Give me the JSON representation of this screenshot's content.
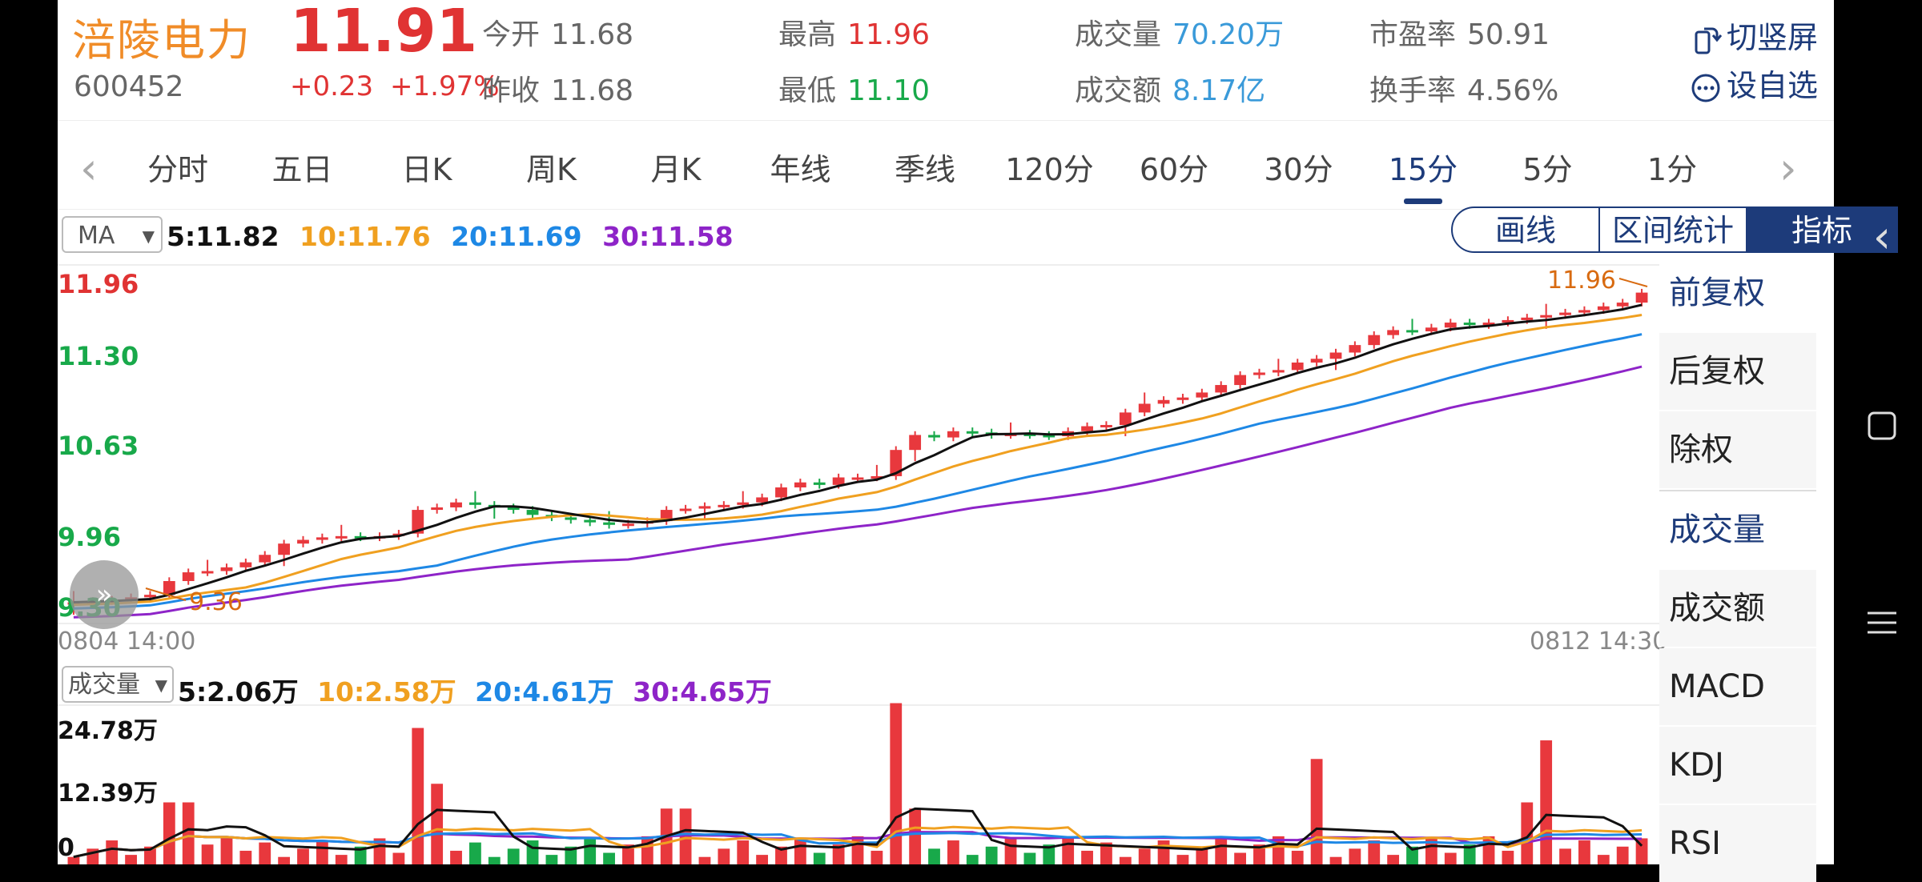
{
  "stock": {
    "name": "涪陵电力",
    "code": "600452",
    "price": "11.91",
    "change": "+0.23",
    "change_pct": "+1.97%"
  },
  "quote": {
    "open_label": "今开",
    "open": "11.68",
    "prev_close_label": "昨收",
    "prev_close": "11.68",
    "high_label": "最高",
    "high": "11.96",
    "low_label": "最低",
    "low": "11.10",
    "volume_label": "成交量",
    "volume": "70.20万",
    "amount_label": "成交额",
    "amount": "8.17亿",
    "pe_label": "市盈率",
    "pe": "50.91",
    "turnover_label": "换手率",
    "turnover": "4.56%"
  },
  "header_buttons": {
    "rotate": "切竖屏",
    "watchlist": "设自选"
  },
  "tabs": [
    "分时",
    "五日",
    "日K",
    "周K",
    "月K",
    "年线",
    "季线",
    "120分",
    "60分",
    "30分",
    "15分",
    "5分",
    "1分"
  ],
  "active_tab": "15分",
  "indicator_select": "MA",
  "ma_values": {
    "ma5": "5:11.82",
    "ma10": "10:11.76",
    "ma20": "20:11.69",
    "ma30": "30:11.58"
  },
  "tools": {
    "draw": "画线",
    "range": "区间统计",
    "indicator": "指标"
  },
  "price_axis": [
    "11.96",
    "11.30",
    "10.63",
    "9.96",
    "9.30"
  ],
  "annotations": {
    "high": "11.96",
    "low": "9.36"
  },
  "dates": {
    "start": "0804 14:00",
    "end": "0812 14:30"
  },
  "volume_select": "成交量",
  "vol_values": {
    "ma5": "5:2.06万",
    "ma10": "10:2.58万",
    "ma20": "20:4.61万",
    "ma30": "30:4.65万"
  },
  "volume_axis": [
    "24.78万",
    "12.39万",
    "0"
  ],
  "side_menu": [
    "前复权",
    "后复权",
    "除权",
    "成交量",
    "成交额",
    "MACD",
    "KDJ",
    "RSI"
  ],
  "colors": {
    "up": "#e8383d",
    "down": "#18a94a",
    "ma5": "#111111",
    "ma10": "#f0a020",
    "ma20": "#1e88e5",
    "ma30": "#8e24c8",
    "accent": "#1d3b7a"
  },
  "chart_data": {
    "type": "candlestick",
    "y_range": [
      9.3,
      11.96
    ],
    "candles_approx": "64 x 15-minute bars rising from ~9.36 to ~11.91",
    "volume_range": [
      0,
      24.78
    ]
  }
}
